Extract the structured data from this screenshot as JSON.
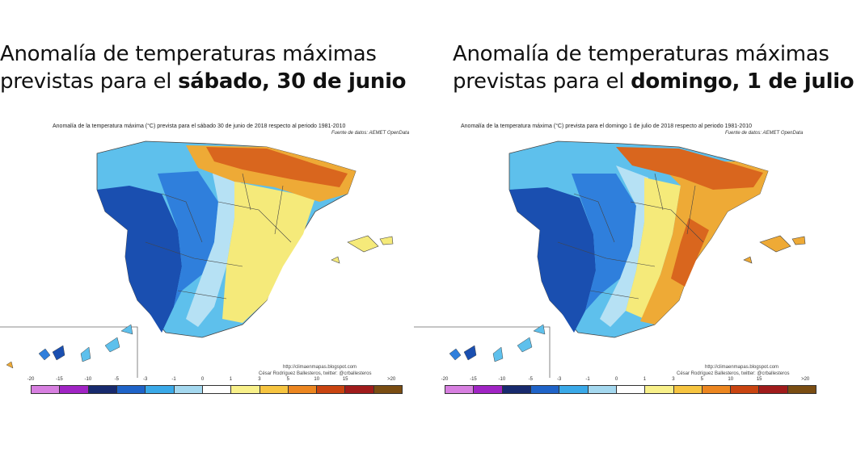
{
  "panels": [
    {
      "headline_line1": "Anomalía de temperaturas máximas",
      "headline_prefix": "previstas para el ",
      "headline_bold": "sábado, 30 de junio",
      "fig_title": "Anomalía de la temperatura máxima (°C) prevista para el sábado 30 de junio de 2018 respecto al periodo 1981-2010",
      "fig_source": "Fuente de datos: AEMET OpenData",
      "credit_url": "http://climaenmapas.blogspot.com",
      "credit_author": "César Rodríguez Ballesteros, twitter: @crballesteros"
    },
    {
      "headline_line1": "Anomalía de temperaturas máximas",
      "headline_prefix": "previstas para el ",
      "headline_bold": "domingo, 1 de julio",
      "fig_title": "Anomalía de la temperatura máxima (°C) prevista para el domingo 1 de julio de 2018 respecto al periodo 1981-2010",
      "fig_source": "Fuente de datos: AEMET OpenData",
      "credit_url": "http://climaenmapas.blogspot.com",
      "credit_author": "César Rodríguez Ballesteros, twitter: @crballesteros"
    }
  ],
  "legend": {
    "ticks": [
      "-20",
      "-15",
      "-10",
      "-5",
      "-3",
      "-1",
      "0",
      "1",
      "3",
      "5",
      "10",
      "15",
      ">20"
    ],
    "colors": [
      "#d77fe0",
      "#a024c4",
      "#182a6e",
      "#1f63c8",
      "#3aa9e8",
      "#a4d8ef",
      "#ffffff",
      "#f8f08a",
      "#f6c440",
      "#ec8620",
      "#c94410",
      "#a01b1b",
      "#7a4d12"
    ]
  },
  "palette": {
    "deep_blue": "#1a4fb0",
    "blue": "#2f7fdc",
    "light_blue": "#5ec0ec",
    "pale_blue": "#b6e1f4",
    "yellow": "#f5ea7a",
    "orange": "#eeaa36",
    "dark_orange": "#d9661e",
    "border": "#444444"
  }
}
